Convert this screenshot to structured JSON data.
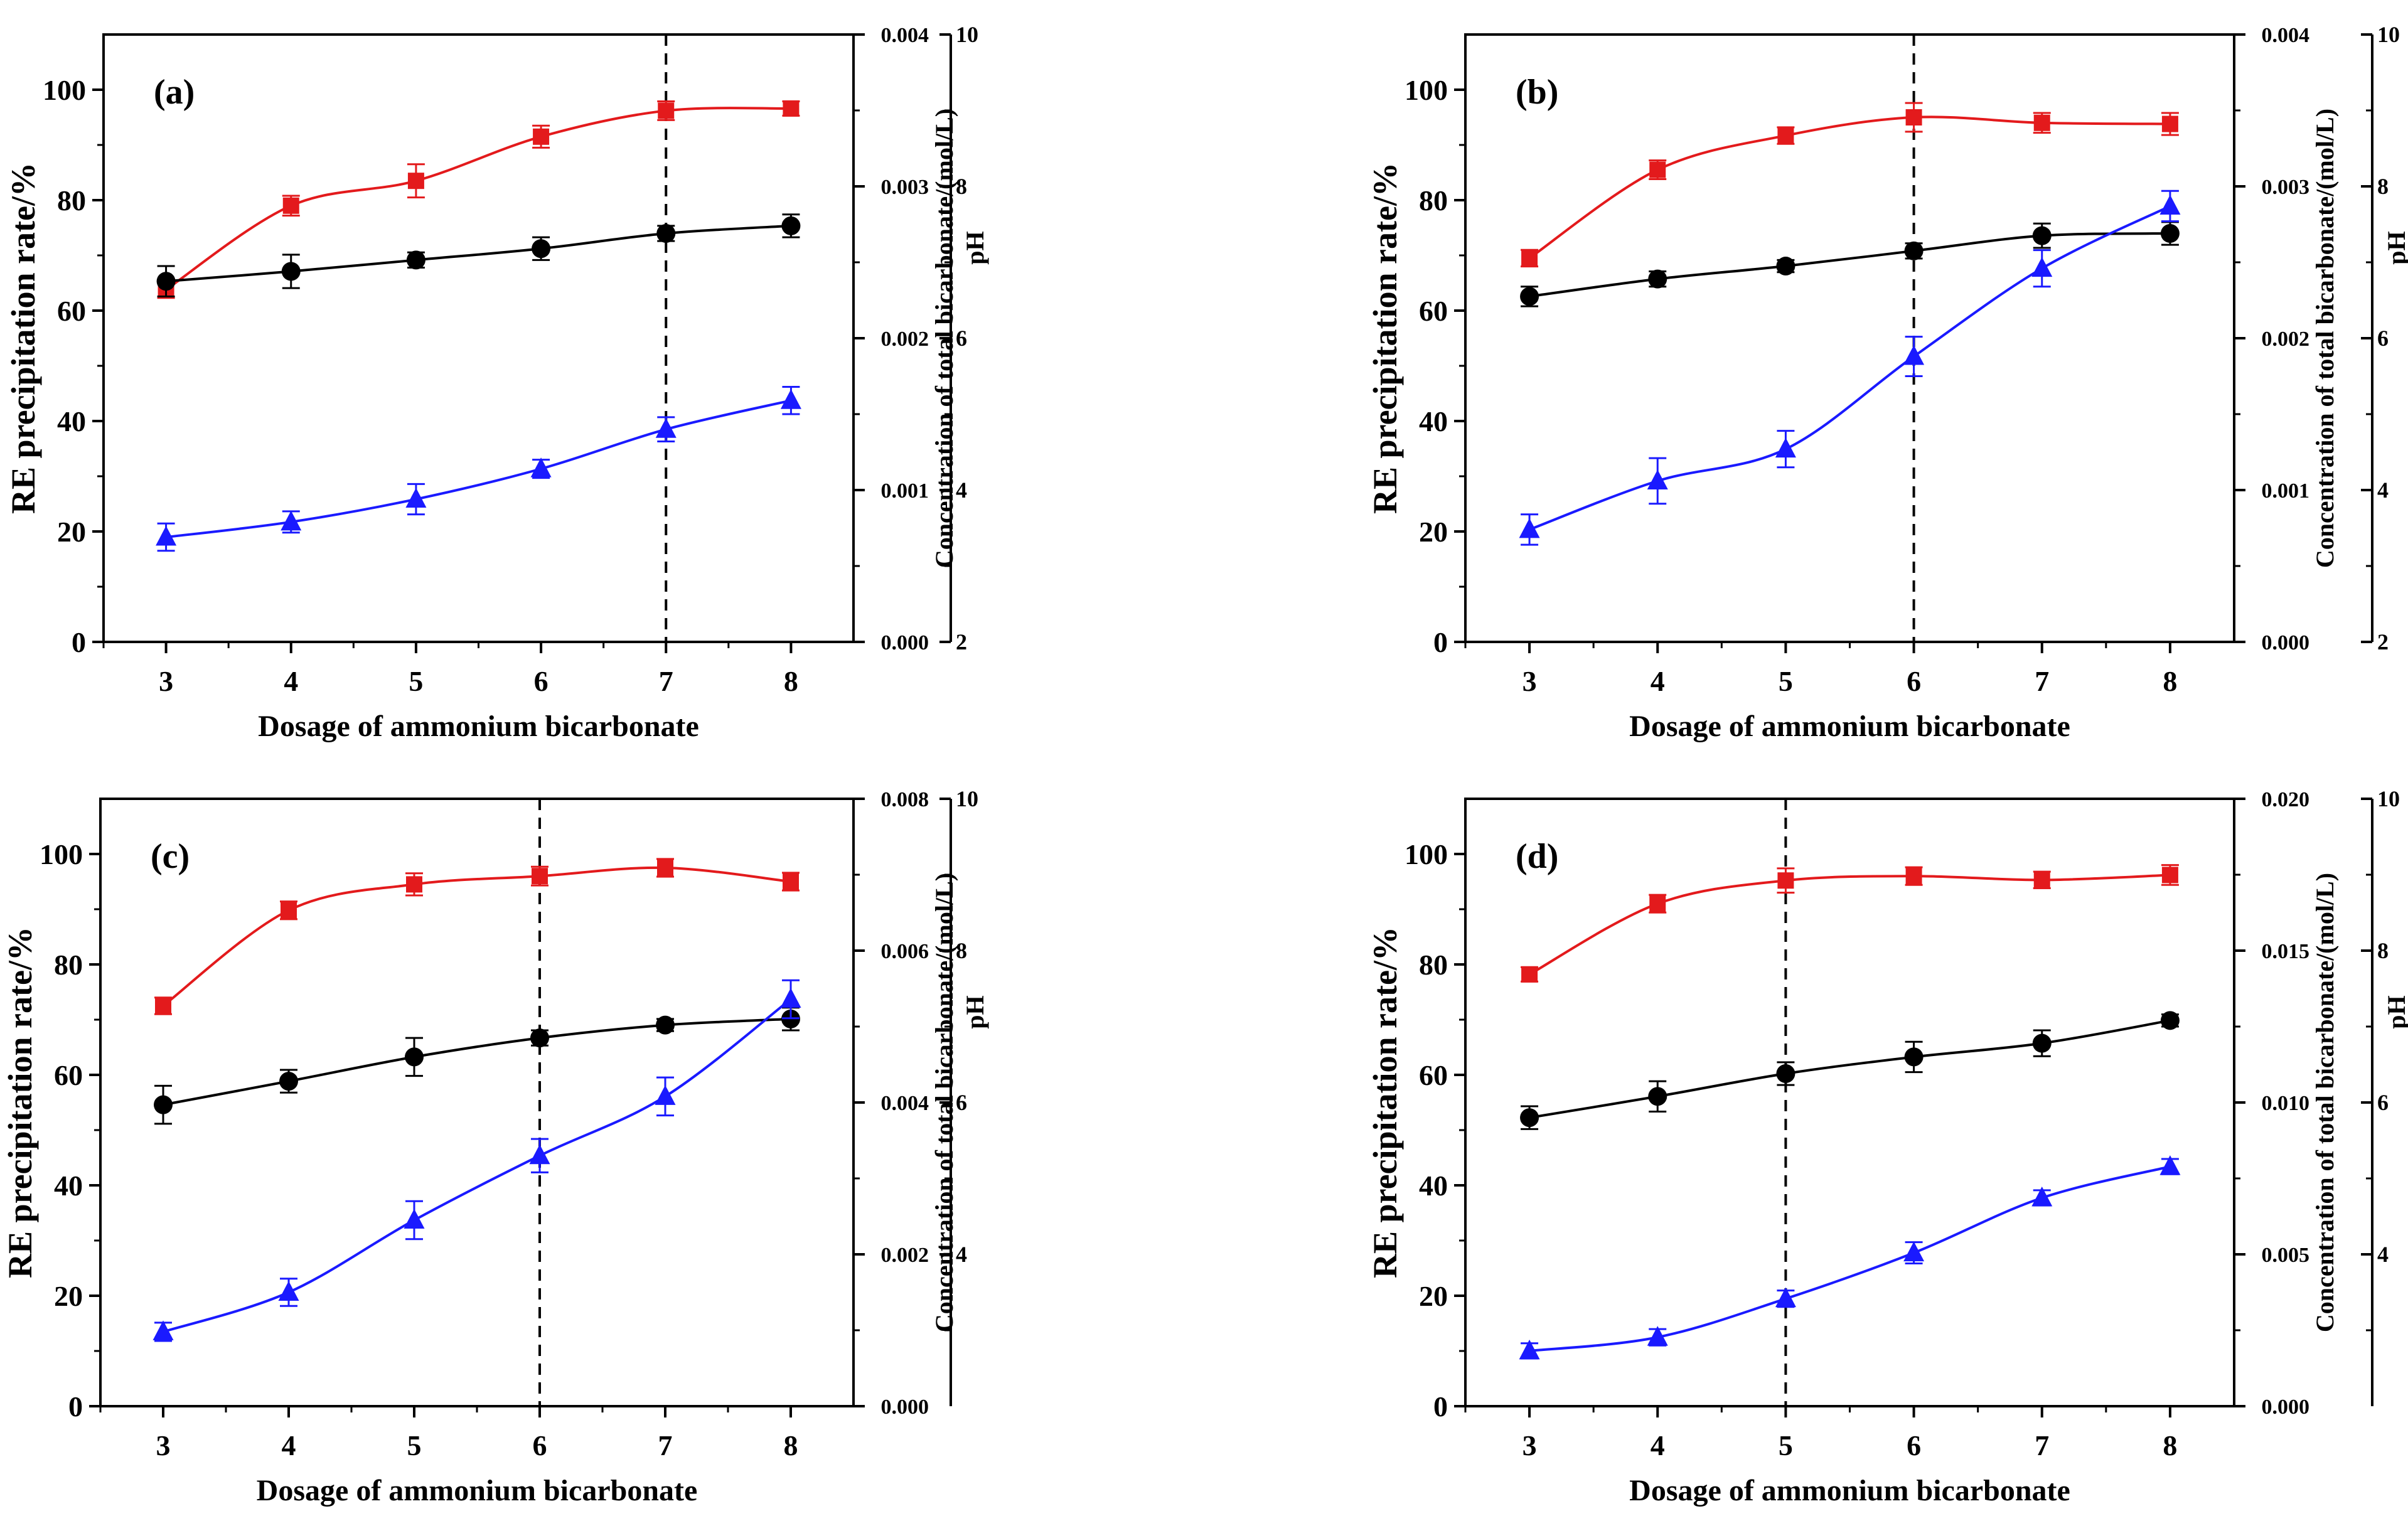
{
  "figure": {
    "xlabel": "Dosage of ammonium bicarbonate",
    "ylabel_left": "RE  precipitation rate/%",
    "ylabel_mid": "Concentration of total  bicarbonate/(mol/L)",
    "ylabel_right": "pH",
    "colors": {
      "precipitation": "#e31a1c",
      "ph": "#000000",
      "bicarbonate": "#1a1aff",
      "axis": "#000000"
    }
  },
  "chart_data": [
    {
      "type": "line",
      "panel_label": "(a)",
      "x": [
        3,
        4,
        5,
        6,
        7,
        8
      ],
      "xlim": [
        2.5,
        8.5
      ],
      "xticks": [
        "3",
        "4",
        "5",
        "6",
        "7",
        "8"
      ],
      "dashed_x": 7,
      "y_left": {
        "range": [
          0,
          110
        ],
        "ticks": [
          "0",
          "20",
          "40",
          "60",
          "80",
          "100"
        ]
      },
      "y_mid": {
        "range": [
          0,
          0.004
        ],
        "ticks": [
          "0.000",
          "0.001",
          "0.002",
          "0.003",
          "0.004"
        ]
      },
      "y_right": {
        "range": [
          2,
          10
        ],
        "ticks": [
          "2",
          "4",
          "6",
          "8",
          "10"
        ]
      },
      "series": [
        {
          "name": "RE precipitation rate",
          "axis": "left",
          "marker": "square",
          "color": "#e31a1c",
          "values": [
            63.8,
            79.0,
            83.5,
            91.5,
            96.2,
            96.6
          ],
          "errors": [
            1.5,
            1.8,
            3.0,
            2.0,
            1.7,
            1.3
          ]
        },
        {
          "name": "pH",
          "axis": "right",
          "marker": "circle",
          "color": "#000000",
          "values": [
            6.75,
            6.88,
            7.03,
            7.18,
            7.38,
            7.48
          ],
          "errors": [
            0.2,
            0.22,
            0.1,
            0.15,
            0.1,
            0.15
          ]
        },
        {
          "name": "Concentration of total bicarbonate",
          "axis": "mid",
          "marker": "triangle",
          "color": "#1a1aff",
          "values": [
            0.00069,
            0.00079,
            0.00094,
            0.00114,
            0.0014,
            0.00159
          ],
          "errors": [
            9e-05,
            7e-05,
            0.0001,
            6e-05,
            8e-05,
            9e-05
          ]
        }
      ]
    },
    {
      "type": "line",
      "panel_label": "(b)",
      "x": [
        3,
        4,
        5,
        6,
        7,
        8
      ],
      "xlim": [
        2.5,
        8.5
      ],
      "xticks": [
        "3",
        "4",
        "5",
        "6",
        "7",
        "8"
      ],
      "dashed_x": 6,
      "y_left": {
        "range": [
          0,
          110
        ],
        "ticks": [
          "0",
          "20",
          "40",
          "60",
          "80",
          "100"
        ]
      },
      "y_mid": {
        "range": [
          0,
          0.004
        ],
        "ticks": [
          "0.000",
          "0.001",
          "0.002",
          "0.003",
          "0.004"
        ]
      },
      "y_right": {
        "range": [
          2,
          10
        ],
        "ticks": [
          "2",
          "4",
          "6",
          "8",
          "10"
        ]
      },
      "series": [
        {
          "name": "RE precipitation rate",
          "axis": "left",
          "marker": "square",
          "color": "#e31a1c",
          "values": [
            69.5,
            85.5,
            91.7,
            95.0,
            94.0,
            93.8
          ],
          "errors": [
            1.5,
            1.7,
            1.5,
            2.6,
            1.8,
            2.0
          ]
        },
        {
          "name": "pH",
          "axis": "right",
          "marker": "circle",
          "color": "#000000",
          "values": [
            6.55,
            6.78,
            6.95,
            7.15,
            7.35,
            7.38
          ],
          "errors": [
            0.13,
            0.1,
            0.08,
            0.1,
            0.16,
            0.15
          ]
        },
        {
          "name": "Concentration of total bicarbonate",
          "axis": "mid",
          "marker": "triangle",
          "color": "#1a1aff",
          "values": [
            0.00074,
            0.00106,
            0.00127,
            0.00188,
            0.00246,
            0.00287
          ],
          "errors": [
            0.0001,
            0.00015,
            0.00012,
            0.00013,
            0.00012,
            0.0001
          ]
        }
      ]
    },
    {
      "type": "line",
      "panel_label": "(c)",
      "x": [
        3,
        4,
        5,
        6,
        7,
        8
      ],
      "xlim": [
        2.5,
        8.5
      ],
      "xticks": [
        "3",
        "4",
        "5",
        "6",
        "7",
        "8"
      ],
      "dashed_x": 6,
      "y_left": {
        "range": [
          0,
          110
        ],
        "ticks": [
          "0",
          "20",
          "40",
          "60",
          "80",
          "100"
        ]
      },
      "y_mid": {
        "range": [
          0,
          0.008
        ],
        "ticks": [
          "0.000",
          "0.002",
          "0.004",
          "0.006",
          "0.008"
        ]
      },
      "y_right": {
        "range": [
          2,
          10
        ],
        "ticks": [
          "4",
          "6",
          "8",
          "10"
        ]
      },
      "series": [
        {
          "name": "RE precipitation rate",
          "axis": "left",
          "marker": "square",
          "color": "#e31a1c",
          "values": [
            72.5,
            89.8,
            94.5,
            96.0,
            97.5,
            95.0
          ],
          "errors": [
            1.5,
            1.6,
            2.0,
            1.7,
            1.6,
            1.6
          ]
        },
        {
          "name": "pH",
          "axis": "right",
          "marker": "circle",
          "color": "#000000",
          "values": [
            5.97,
            6.28,
            6.6,
            6.85,
            7.02,
            7.1
          ],
          "errors": [
            0.25,
            0.15,
            0.25,
            0.1,
            0.08,
            0.15
          ]
        },
        {
          "name": "Concentration of total bicarbonate",
          "axis": "mid",
          "marker": "triangle",
          "color": "#1a1aff",
          "values": [
            0.00098,
            0.0015,
            0.00245,
            0.0033,
            0.00408,
            0.00536
          ],
          "errors": [
            0.00012,
            0.00018,
            0.00025,
            0.00022,
            0.00025,
            0.00025
          ]
        }
      ]
    },
    {
      "type": "line",
      "panel_label": "(d)",
      "x": [
        3,
        4,
        5,
        6,
        7,
        8
      ],
      "xlim": [
        2.5,
        8.5
      ],
      "xticks": [
        "3",
        "4",
        "5",
        "6",
        "7",
        "8"
      ],
      "dashed_x": 5,
      "y_left": {
        "range": [
          0,
          110
        ],
        "ticks": [
          "0",
          "20",
          "40",
          "60",
          "80",
          "100"
        ]
      },
      "y_mid": {
        "range": [
          0,
          0.02
        ],
        "ticks": [
          "0.000",
          "0.005",
          "0.010",
          "0.015",
          "0.020"
        ]
      },
      "y_right": {
        "range": [
          2,
          10
        ],
        "ticks": [
          "4",
          "6",
          "8",
          "10"
        ]
      },
      "series": [
        {
          "name": "RE precipitation rate",
          "axis": "left",
          "marker": "square",
          "color": "#e31a1c",
          "values": [
            78.2,
            91.0,
            95.2,
            96.0,
            95.3,
            96.2
          ],
          "errors": [
            1.3,
            1.6,
            2.2,
            1.6,
            1.5,
            1.8
          ]
        },
        {
          "name": "pH",
          "axis": "right",
          "marker": "circle",
          "color": "#000000",
          "values": [
            5.8,
            6.08,
            6.38,
            6.6,
            6.78,
            7.08
          ],
          "errors": [
            0.15,
            0.2,
            0.15,
            0.2,
            0.17,
            0.08
          ]
        },
        {
          "name": "Concentration of total bicarbonate",
          "axis": "mid",
          "marker": "triangle",
          "color": "#1a1aff",
          "values": [
            0.00182,
            0.00227,
            0.00354,
            0.00505,
            0.00686,
            0.00789
          ],
          "errors": [
            0.00025,
            0.00027,
            0.00027,
            0.00035,
            0.00025,
            0.00025
          ]
        }
      ]
    }
  ]
}
